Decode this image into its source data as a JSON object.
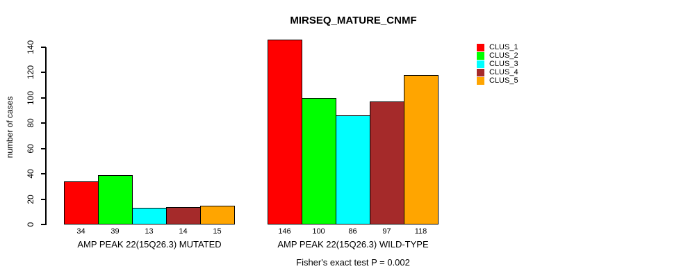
{
  "chart_data": {
    "type": "bar",
    "title": "MIRSEQ_MATURE_CNMF",
    "ylabel": "number of cases",
    "xlabel": "",
    "ylim": [
      0,
      140
    ],
    "yticks": [
      0,
      20,
      40,
      60,
      80,
      100,
      120,
      140
    ],
    "grid": false,
    "legend_position": "top-right",
    "categories": [
      "AMP PEAK 22(15Q26.3) MUTATED",
      "AMP PEAK 22(15Q26.3) WILD-TYPE"
    ],
    "series": [
      {
        "name": "CLUS_1",
        "color": "#FF0000",
        "values": [
          34,
          146
        ]
      },
      {
        "name": "CLUS_2",
        "color": "#00FF00",
        "values": [
          39,
          100
        ]
      },
      {
        "name": "CLUS_3",
        "color": "#00FFFF",
        "values": [
          13,
          86
        ]
      },
      {
        "name": "CLUS_4",
        "color": "#A52A2A",
        "values": [
          14,
          97
        ]
      },
      {
        "name": "CLUS_5",
        "color": "#FFA500",
        "values": [
          15,
          118
        ]
      }
    ],
    "groups": [
      {
        "label": "AMP PEAK 22(15Q26.3) MUTATED",
        "values": [
          34,
          39,
          13,
          14,
          15
        ]
      },
      {
        "label": "AMP PEAK 22(15Q26.3) WILD-TYPE",
        "values": [
          146,
          100,
          86,
          97,
          118
        ]
      }
    ],
    "bar_value_labels_shown": true,
    "caption": "Fisher's exact test P = 0.002"
  }
}
